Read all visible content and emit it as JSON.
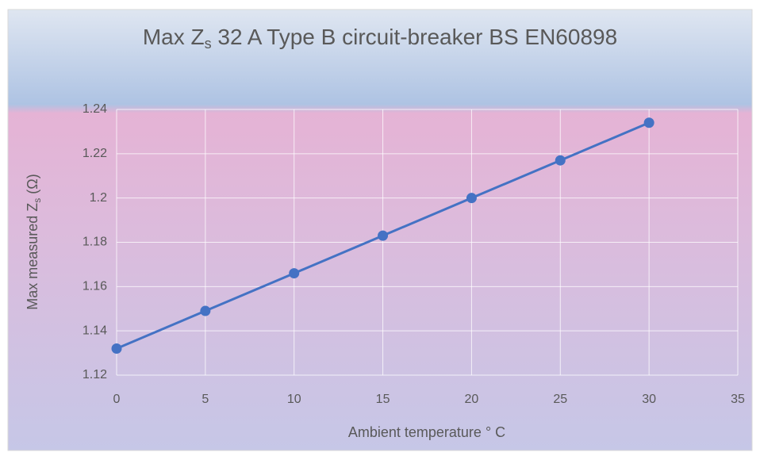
{
  "chart_data": {
    "type": "line",
    "title": [
      "Max Z",
      "s",
      " 32 A Type B circuit-breaker BS EN60898"
    ],
    "x_label": "Ambient temperature ° C",
    "y_label": [
      "Max measured Z",
      "s",
      " (Ω)"
    ],
    "x": [
      0,
      5,
      10,
      15,
      20,
      25,
      30
    ],
    "values": [
      1.132,
      1.149,
      1.166,
      1.183,
      1.2,
      1.217,
      1.234
    ],
    "color": "#4472c4",
    "xlim": [
      0,
      35
    ],
    "xticks": [
      0,
      5,
      10,
      15,
      20,
      25,
      30,
      35
    ],
    "ylim": [
      1.12,
      1.24
    ],
    "yticks": [
      1.12,
      1.14,
      1.16,
      1.18,
      1.2,
      1.22,
      1.24
    ],
    "grid": true
  }
}
